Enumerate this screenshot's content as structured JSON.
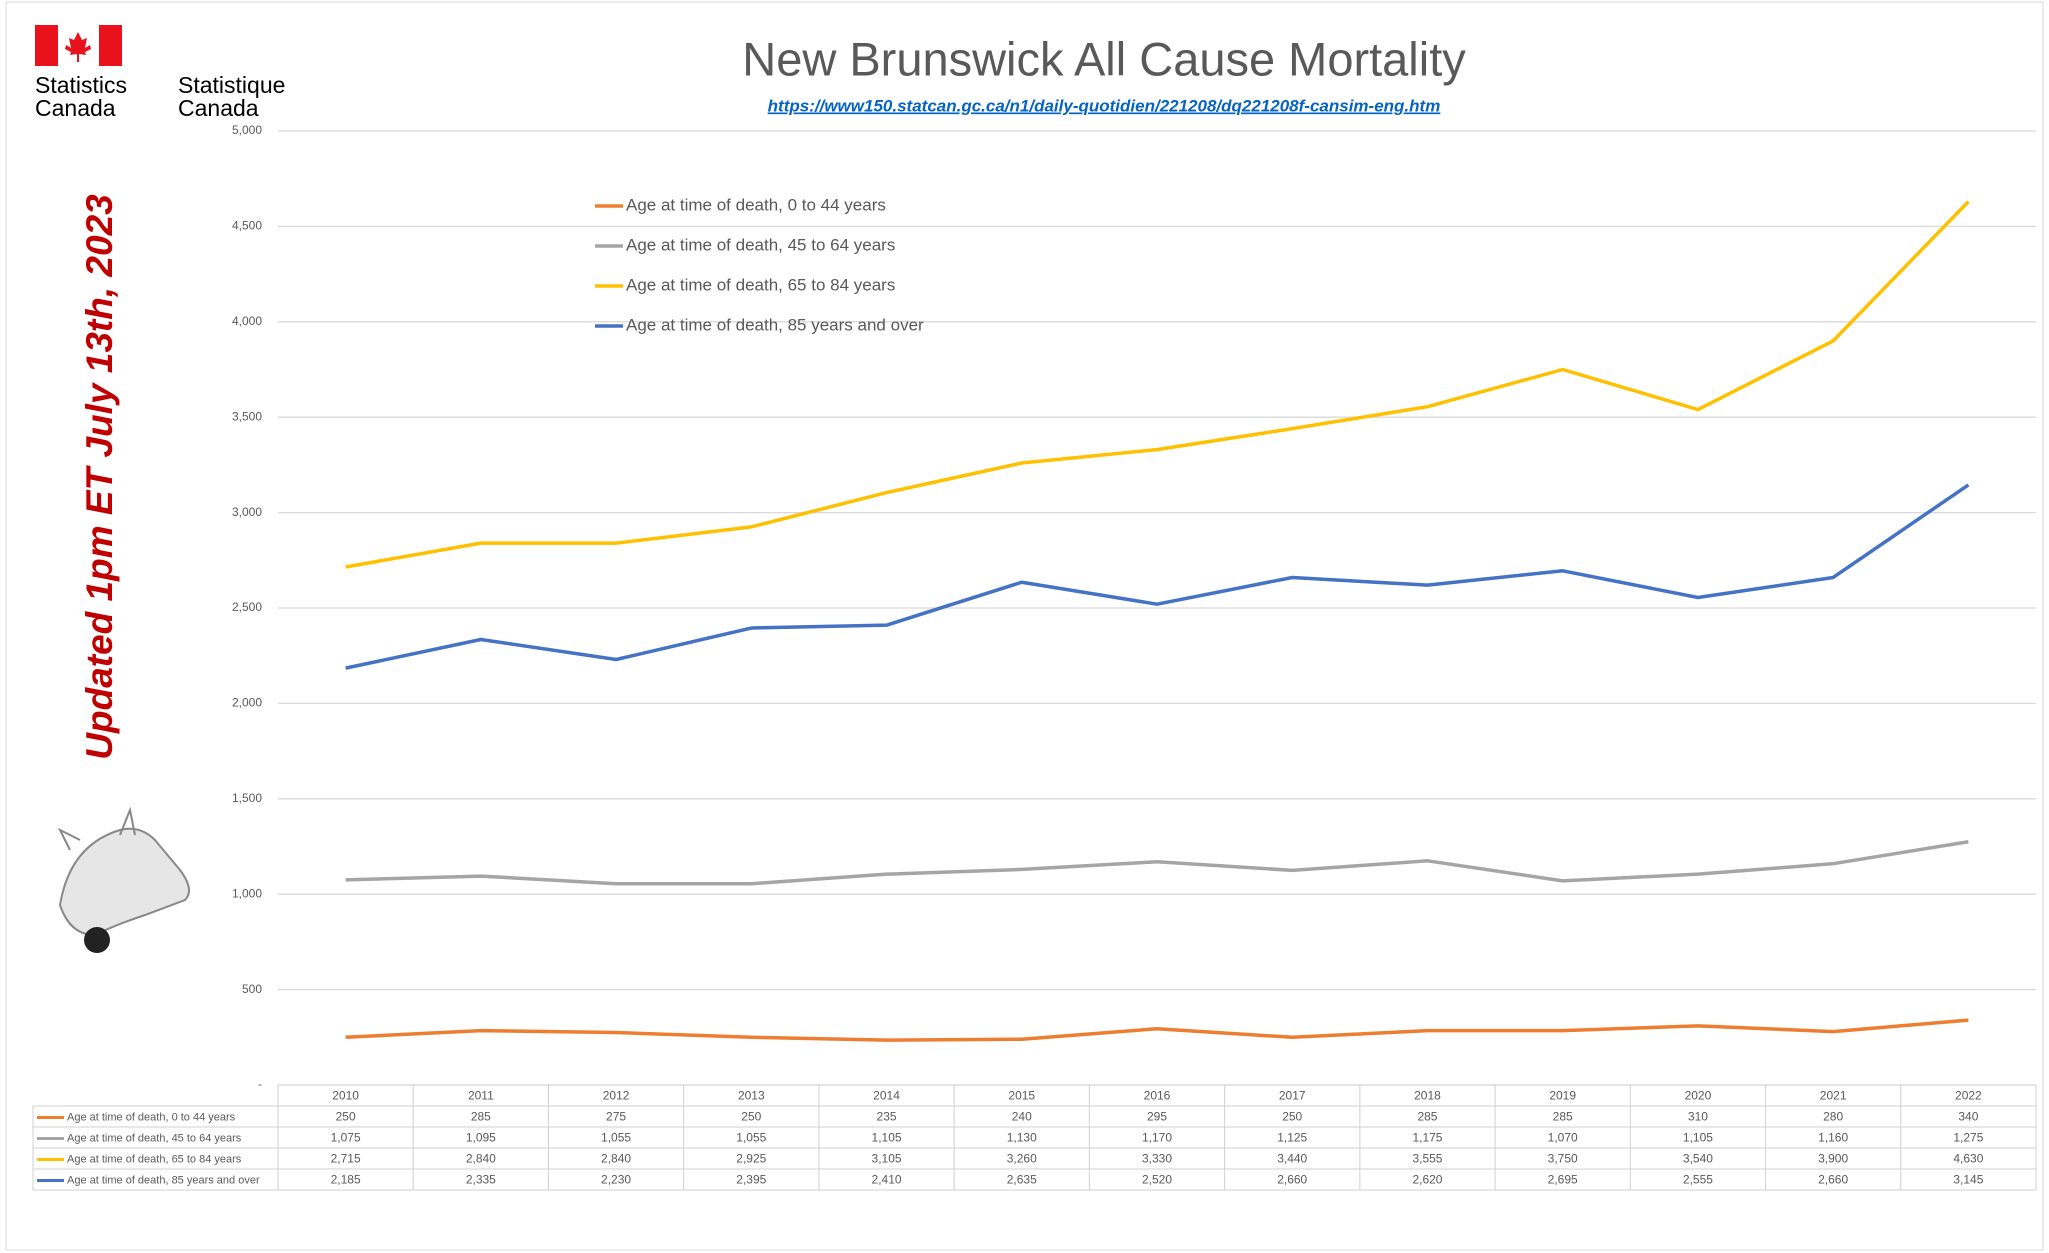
{
  "logo": {
    "english": "Statistics\nCanada",
    "french": "Statistique\nCanada"
  },
  "side_note": "Updated 1pm ET July 13th, 2023",
  "chart_data": {
    "type": "line",
    "title": "New Brunswick All Cause Mortality",
    "subtitle": "https://www150.statcan.gc.ca/n1/daily-quotidien/221208/dq221208f-cansim-eng.htm",
    "categories": [
      "2010",
      "2011",
      "2012",
      "2013",
      "2014",
      "2015",
      "2016",
      "2017",
      "2018",
      "2019",
      "2020",
      "2021",
      "2022"
    ],
    "series": [
      {
        "name": "Age at time of death, 0 to 44 years",
        "color": "#ed7d31",
        "values": [
          250,
          285,
          275,
          250,
          235,
          240,
          295,
          250,
          285,
          285,
          310,
          280,
          340
        ]
      },
      {
        "name": "Age at time of death, 45 to 64 years",
        "color": "#a5a5a5",
        "values": [
          1075,
          1095,
          1055,
          1055,
          1105,
          1130,
          1170,
          1125,
          1175,
          1070,
          1105,
          1160,
          1275
        ],
        "value_labels": [
          "1,075",
          "1,095",
          "1,055",
          "1,055",
          "1,105",
          "1,130",
          "1,170",
          "1,125",
          "1,175",
          "1,070",
          "1,105",
          "1,160",
          "1,275"
        ]
      },
      {
        "name": "Age at time of death, 65 to 84 years",
        "color": "#ffc000",
        "values": [
          2715,
          2840,
          2840,
          2925,
          3105,
          3260,
          3330,
          3440,
          3555,
          3750,
          3540,
          3900,
          4630
        ],
        "value_labels": [
          "2,715",
          "2,840",
          "2,840",
          "2,925",
          "3,105",
          "3,260",
          "3,330",
          "3,440",
          "3,555",
          "3,750",
          "3,540",
          "3,900",
          "4,630"
        ]
      },
      {
        "name": "Age at time of death, 85 years and over",
        "color": "#4472c4",
        "values": [
          2185,
          2335,
          2230,
          2395,
          2410,
          2635,
          2520,
          2660,
          2620,
          2695,
          2555,
          2660,
          3145
        ],
        "value_labels": [
          "2,185",
          "2,335",
          "2,230",
          "2,395",
          "2,410",
          "2,635",
          "2,520",
          "2,660",
          "2,620",
          "2,695",
          "2,555",
          "2,660",
          "3,145"
        ]
      }
    ],
    "ylim": [
      0,
      5000
    ],
    "yticks": [
      {
        "value": 0,
        "label": "-"
      },
      500,
      {
        "value": 1000,
        "label": "1,000"
      },
      {
        "value": 1500,
        "label": "1,500"
      },
      {
        "value": 2000,
        "label": "2,000"
      },
      {
        "value": 2500,
        "label": "2,500"
      },
      {
        "value": 3000,
        "label": "3,000"
      },
      {
        "value": 3500,
        "label": "3,500"
      },
      {
        "value": 4000,
        "label": "4,000"
      },
      {
        "value": 4500,
        "label": "4,500"
      },
      {
        "value": 5000,
        "label": "5,000"
      }
    ],
    "grid": true
  }
}
